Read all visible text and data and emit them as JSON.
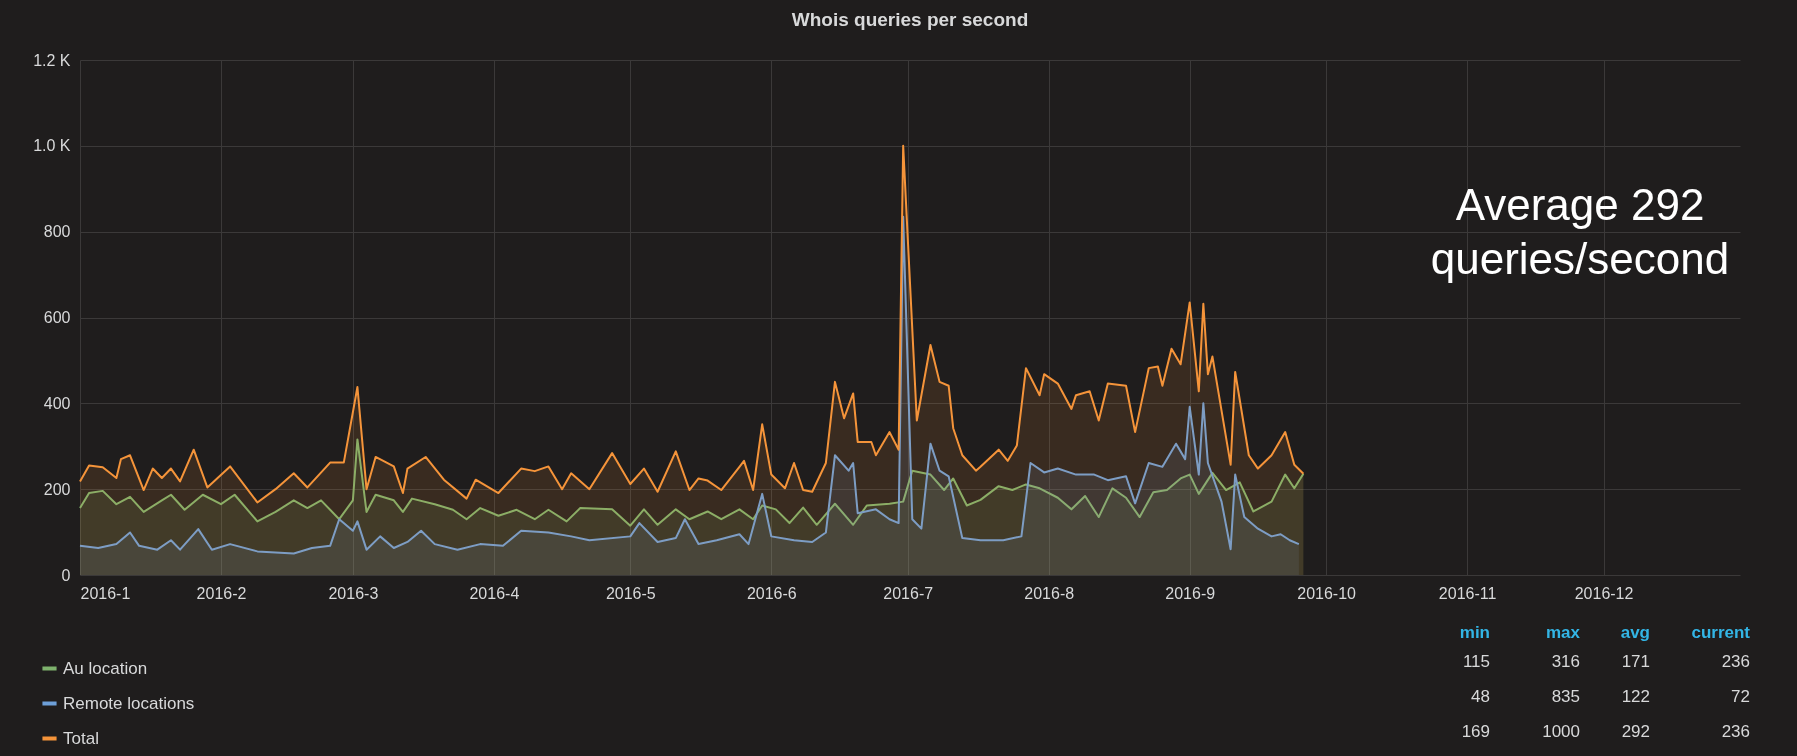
{
  "chart_data": {
    "type": "area",
    "title": "Whois queries per second",
    "xlim": [
      "2016-01-01",
      "2016-12-31"
    ],
    "xticks": [
      {
        "value": "2016-01",
        "label": "2016-1"
      },
      {
        "value": "2016-02",
        "label": "2016-2"
      },
      {
        "value": "2016-03",
        "label": "2016-3"
      },
      {
        "value": "2016-04",
        "label": "2016-4"
      },
      {
        "value": "2016-05",
        "label": "2016-5"
      },
      {
        "value": "2016-06",
        "label": "2016-6"
      },
      {
        "value": "2016-07",
        "label": "2016-7"
      },
      {
        "value": "2016-08",
        "label": "2016-8"
      },
      {
        "value": "2016-09",
        "label": "2016-9"
      },
      {
        "value": "2016-10",
        "label": "2016-10"
      },
      {
        "value": "2016-11",
        "label": "2016-11"
      },
      {
        "value": "2016-12",
        "label": "2016-12"
      }
    ],
    "ylim": [
      0,
      1200
    ],
    "yticks": [
      0,
      200,
      400,
      600,
      800,
      {
        "value": 1000,
        "label": "1.0 K"
      },
      {
        "value": 1200,
        "label": "1.2 K"
      }
    ],
    "grid": true,
    "legend": "bottom",
    "annotations": [
      "Average 292 queries/second",
      "min",
      "max",
      "avg",
      "current",
      "115",
      "316",
      "171",
      "236",
      "48",
      "835",
      "122",
      "72",
      "169",
      "1000",
      "292",
      "236"
    ],
    "series": [
      {
        "name": "Au location",
        "color": "#7eb26d",
        "x": [
          "2016-01-01",
          "2016-01-03",
          "2016-01-06",
          "2016-01-09",
          "2016-01-12",
          "2016-01-15",
          "2016-01-19",
          "2016-01-21",
          "2016-01-24",
          "2016-01-28",
          "2016-02-01",
          "2016-02-04",
          "2016-02-09",
          "2016-02-13",
          "2016-02-17",
          "2016-02-20",
          "2016-02-23",
          "2016-02-27",
          "2016-03-01",
          "2016-03-02",
          "2016-03-04",
          "2016-03-06",
          "2016-03-10",
          "2016-03-12",
          "2016-03-14",
          "2016-03-19",
          "2016-03-23",
          "2016-03-26",
          "2016-03-29",
          "2016-04-02",
          "2016-04-06",
          "2016-04-10",
          "2016-04-13",
          "2016-04-17",
          "2016-04-20",
          "2016-04-27",
          "2016-05-01",
          "2016-05-04",
          "2016-05-07",
          "2016-05-11",
          "2016-05-14",
          "2016-05-18",
          "2016-05-21",
          "2016-05-25",
          "2016-05-28",
          "2016-05-30",
          "2016-06-02",
          "2016-06-05",
          "2016-06-08",
          "2016-06-11",
          "2016-06-15",
          "2016-06-19",
          "2016-06-22",
          "2016-06-27",
          "2016-06-30",
          "2016-07-02",
          "2016-07-06",
          "2016-07-09",
          "2016-07-11",
          "2016-07-14",
          "2016-07-17",
          "2016-07-21",
          "2016-07-24",
          "2016-07-27",
          "2016-07-30",
          "2016-08-03",
          "2016-08-06",
          "2016-08-09",
          "2016-08-12",
          "2016-08-15",
          "2016-08-18",
          "2016-08-21",
          "2016-08-24",
          "2016-08-27",
          "2016-08-30",
          "2016-09-01",
          "2016-09-03",
          "2016-09-06",
          "2016-09-09",
          "2016-09-12",
          "2016-09-15",
          "2016-09-19",
          "2016-09-22",
          "2016-09-24",
          "2016-09-26"
        ],
        "values": [
          156,
          191,
          196,
          165,
          182,
          147,
          174,
          187,
          152,
          187,
          165,
          187,
          125,
          147,
          174,
          156,
          174,
          130,
          174,
          316,
          147,
          187,
          174,
          147,
          178,
          165,
          152,
          130,
          156,
          138,
          152,
          130,
          152,
          125,
          156,
          153,
          115,
          153,
          117,
          153,
          130,
          148,
          130,
          153,
          130,
          162,
          153,
          121,
          157,
          117,
          166,
          117,
          162,
          166,
          171,
          243,
          234,
          198,
          225,
          162,
          175,
          207,
          198,
          211,
          202,
          180,
          153,
          184,
          135,
          202,
          180,
          135,
          193,
          198,
          225,
          234,
          189,
          238,
          198,
          216,
          148,
          171,
          234,
          202,
          236
        ]
      },
      {
        "name": "Remote locations",
        "color": "#6d9fd8",
        "x": [
          "2016-01-01",
          "2016-01-05",
          "2016-01-09",
          "2016-01-12",
          "2016-01-14",
          "2016-01-18",
          "2016-01-21",
          "2016-01-23",
          "2016-01-27",
          "2016-01-30",
          "2016-02-03",
          "2016-02-09",
          "2016-02-17",
          "2016-02-21",
          "2016-02-25",
          "2016-02-27",
          "2016-03-01",
          "2016-03-02",
          "2016-03-04",
          "2016-03-07",
          "2016-03-10",
          "2016-03-13",
          "2016-03-16",
          "2016-03-19",
          "2016-03-24",
          "2016-03-29",
          "2016-04-03",
          "2016-04-07",
          "2016-04-13",
          "2016-04-18",
          "2016-04-22",
          "2016-05-01",
          "2016-05-03",
          "2016-05-07",
          "2016-05-11",
          "2016-05-13",
          "2016-05-16",
          "2016-05-20",
          "2016-05-25",
          "2016-05-27",
          "2016-05-30",
          "2016-06-01",
          "2016-06-06",
          "2016-06-10",
          "2016-06-13",
          "2016-06-15",
          "2016-06-18",
          "2016-06-19",
          "2016-06-20",
          "2016-06-24",
          "2016-06-27",
          "2016-06-29",
          "2016-06-30",
          "2016-07-02",
          "2016-07-04",
          "2016-07-06",
          "2016-07-08",
          "2016-07-10",
          "2016-07-13",
          "2016-07-17",
          "2016-07-22",
          "2016-07-26",
          "2016-07-28",
          "2016-07-31",
          "2016-08-03",
          "2016-08-07",
          "2016-08-11",
          "2016-08-14",
          "2016-08-18",
          "2016-08-20",
          "2016-08-23",
          "2016-08-26",
          "2016-08-29",
          "2016-08-31",
          "2016-09-01",
          "2016-09-03",
          "2016-09-04",
          "2016-09-05",
          "2016-09-08",
          "2016-09-10",
          "2016-09-11",
          "2016-09-13",
          "2016-09-16",
          "2016-09-19",
          "2016-09-21",
          "2016-09-23",
          "2016-09-25"
        ],
        "values": [
          68,
          63,
          72,
          99,
          68,
          59,
          81,
          59,
          107,
          59,
          72,
          55,
          50,
          63,
          68,
          130,
          103,
          125,
          59,
          90,
          63,
          77,
          103,
          72,
          59,
          72,
          68,
          103,
          99,
          90,
          81,
          90,
          121,
          77,
          86,
          130,
          72,
          81,
          95,
          72,
          189,
          90,
          81,
          77,
          99,
          279,
          243,
          261,
          144,
          153,
          130,
          121,
          835,
          130,
          108,
          306,
          243,
          230,
          86,
          81,
          81,
          90,
          261,
          239,
          248,
          234,
          234,
          221,
          230,
          167,
          261,
          252,
          306,
          270,
          392,
          234,
          400,
          261,
          171,
          60,
          234,
          135,
          108,
          90,
          95,
          81,
          72
        ]
      },
      {
        "name": "Total",
        "color": "#f5943a",
        "x": [
          "2016-01-01",
          "2016-01-03",
          "2016-01-06",
          "2016-01-09",
          "2016-01-10",
          "2016-01-12",
          "2016-01-15",
          "2016-01-17",
          "2016-01-19",
          "2016-01-21",
          "2016-01-23",
          "2016-01-26",
          "2016-01-29",
          "2016-02-03",
          "2016-02-09",
          "2016-02-13",
          "2016-02-17",
          "2016-02-20",
          "2016-02-25",
          "2016-02-28",
          "2016-03-02",
          "2016-03-04",
          "2016-03-06",
          "2016-03-10",
          "2016-03-12",
          "2016-03-13",
          "2016-03-17",
          "2016-03-21",
          "2016-03-26",
          "2016-03-28",
          "2016-04-02",
          "2016-04-07",
          "2016-04-10",
          "2016-04-13",
          "2016-04-16",
          "2016-04-18",
          "2016-04-22",
          "2016-04-27",
          "2016-05-01",
          "2016-05-04",
          "2016-05-07",
          "2016-05-11",
          "2016-05-14",
          "2016-05-16",
          "2016-05-18",
          "2016-05-21",
          "2016-05-25",
          "2016-05-26",
          "2016-05-28",
          "2016-05-30",
          "2016-06-01",
          "2016-06-04",
          "2016-06-06",
          "2016-06-08",
          "2016-06-10",
          "2016-06-13",
          "2016-06-15",
          "2016-06-17",
          "2016-06-19",
          "2016-06-20",
          "2016-06-23",
          "2016-06-24",
          "2016-06-27",
          "2016-06-29",
          "2016-06-30",
          "2016-07-03",
          "2016-07-06",
          "2016-07-08",
          "2016-07-10",
          "2016-07-11",
          "2016-07-13",
          "2016-07-16",
          "2016-07-17",
          "2016-07-21",
          "2016-07-23",
          "2016-07-25",
          "2016-07-27",
          "2016-07-30",
          "2016-07-31",
          "2016-08-03",
          "2016-08-06",
          "2016-08-07",
          "2016-08-10",
          "2016-08-12",
          "2016-08-14",
          "2016-08-18",
          "2016-08-20",
          "2016-08-23",
          "2016-08-25",
          "2016-08-26",
          "2016-08-28",
          "2016-08-30",
          "2016-09-01",
          "2016-09-03",
          "2016-09-04",
          "2016-09-05",
          "2016-09-06",
          "2016-09-10",
          "2016-09-11",
          "2016-09-14",
          "2016-09-16",
          "2016-09-19",
          "2016-09-22",
          "2016-09-24",
          "2016-09-26"
        ],
        "values": [
          218,
          255,
          251,
          226,
          270,
          279,
          198,
          248,
          226,
          248,
          218,
          292,
          204,
          253,
          169,
          200,
          237,
          204,
          262,
          262,
          438,
          200,
          275,
          253,
          191,
          248,
          275,
          222,
          178,
          222,
          191,
          248,
          242,
          253,
          200,
          237,
          200,
          284,
          212,
          248,
          194,
          288,
          198,
          225,
          220,
          198,
          252,
          266,
          198,
          351,
          234,
          202,
          261,
          198,
          194,
          261,
          450,
          365,
          423,
          310,
          310,
          279,
          333,
          292,
          1000,
          360,
          536,
          450,
          441,
          342,
          279,
          243,
          252,
          292,
          266,
          302,
          482,
          419,
          468,
          446,
          387,
          419,
          428,
          360,
          446,
          441,
          333,
          482,
          486,
          441,
          527,
          491,
          635,
          428,
          632,
          468,
          509,
          257,
          473,
          279,
          248,
          279,
          333,
          257,
          236
        ]
      }
    ]
  }
}
